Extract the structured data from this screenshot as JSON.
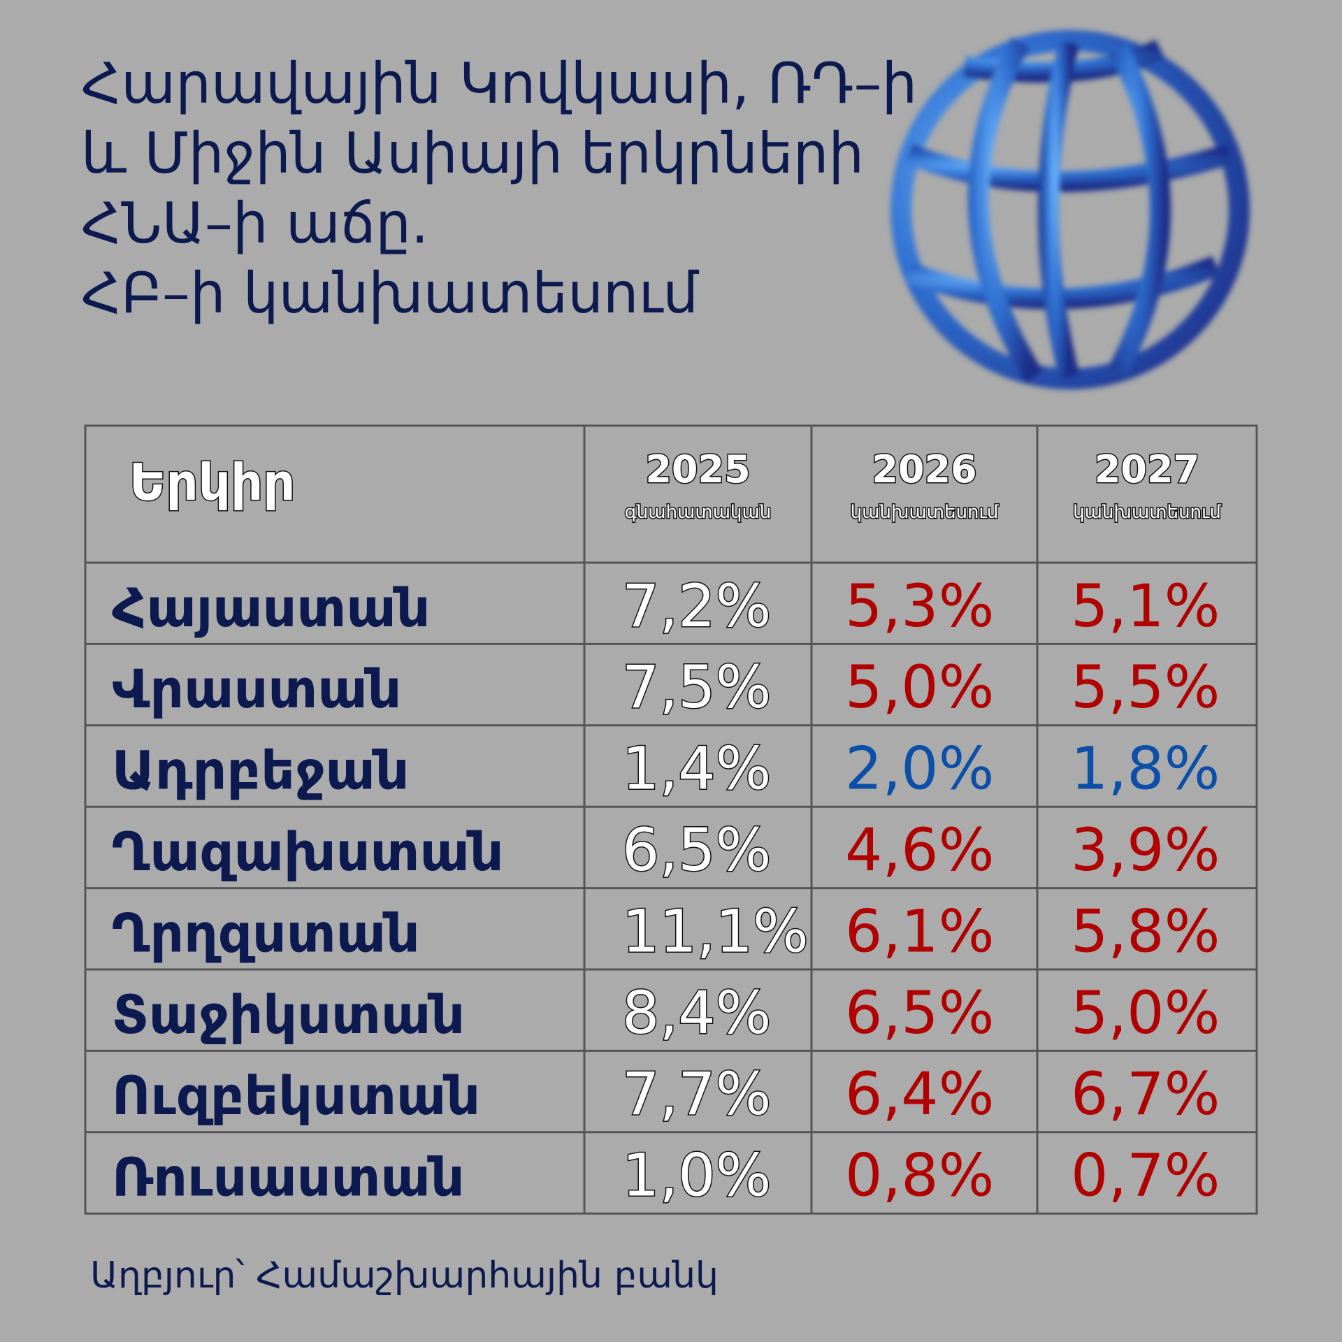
{
  "header": {
    "title_lines": [
      "Հարավային Կովկասի, ՌԴ–ի",
      "և Միջին Ասիայի երկրների",
      "ՀՆԱ–ի աճը.",
      "ՀԲ–ի կանխատեսում"
    ]
  },
  "table": {
    "columns": [
      {
        "label": "Երկիր"
      },
      {
        "label": "2025",
        "sublabel": "գնահատական"
      },
      {
        "label": "2026",
        "sublabel": "կանխատեսում"
      },
      {
        "label": "2027",
        "sublabel": "կանխատեսում"
      }
    ],
    "rows": [
      {
        "cells": [
          "Հայաստան",
          "7,2%",
          "5,3%",
          "5,1%"
        ],
        "forecast_color": "#b00000"
      },
      {
        "cells": [
          "Վրաստան",
          "7,5%",
          "5,0%",
          "5,5%"
        ],
        "forecast_color": "#b00000"
      },
      {
        "cells": [
          "Ադրբեջան",
          "1,4%",
          "2,0%",
          "1,8%"
        ],
        "forecast_color": "#0b4fa8"
      },
      {
        "cells": [
          "Ղազախստան",
          "6,5%",
          "4,6%",
          "3,9%"
        ],
        "forecast_color": "#b00000"
      },
      {
        "cells": [
          "Ղրղզստան",
          "11,1%",
          "6,1%",
          "5,8%"
        ],
        "forecast_color": "#b00000"
      },
      {
        "cells": [
          "Տաջիկստան",
          "8,4%",
          "6,5%",
          "5,0%"
        ],
        "forecast_color": "#b00000"
      },
      {
        "cells": [
          "Ուզբեկստան",
          "7,7%",
          "6,4%",
          "6,7%"
        ],
        "forecast_color": "#b00000"
      },
      {
        "cells": [
          "Ռուսաստան",
          "1,0%",
          "0,8%",
          "0,7%"
        ],
        "forecast_color": "#b00000"
      }
    ]
  },
  "footer": {
    "source": "Աղբյուր՝ Համաշխարհային բանկ"
  }
}
